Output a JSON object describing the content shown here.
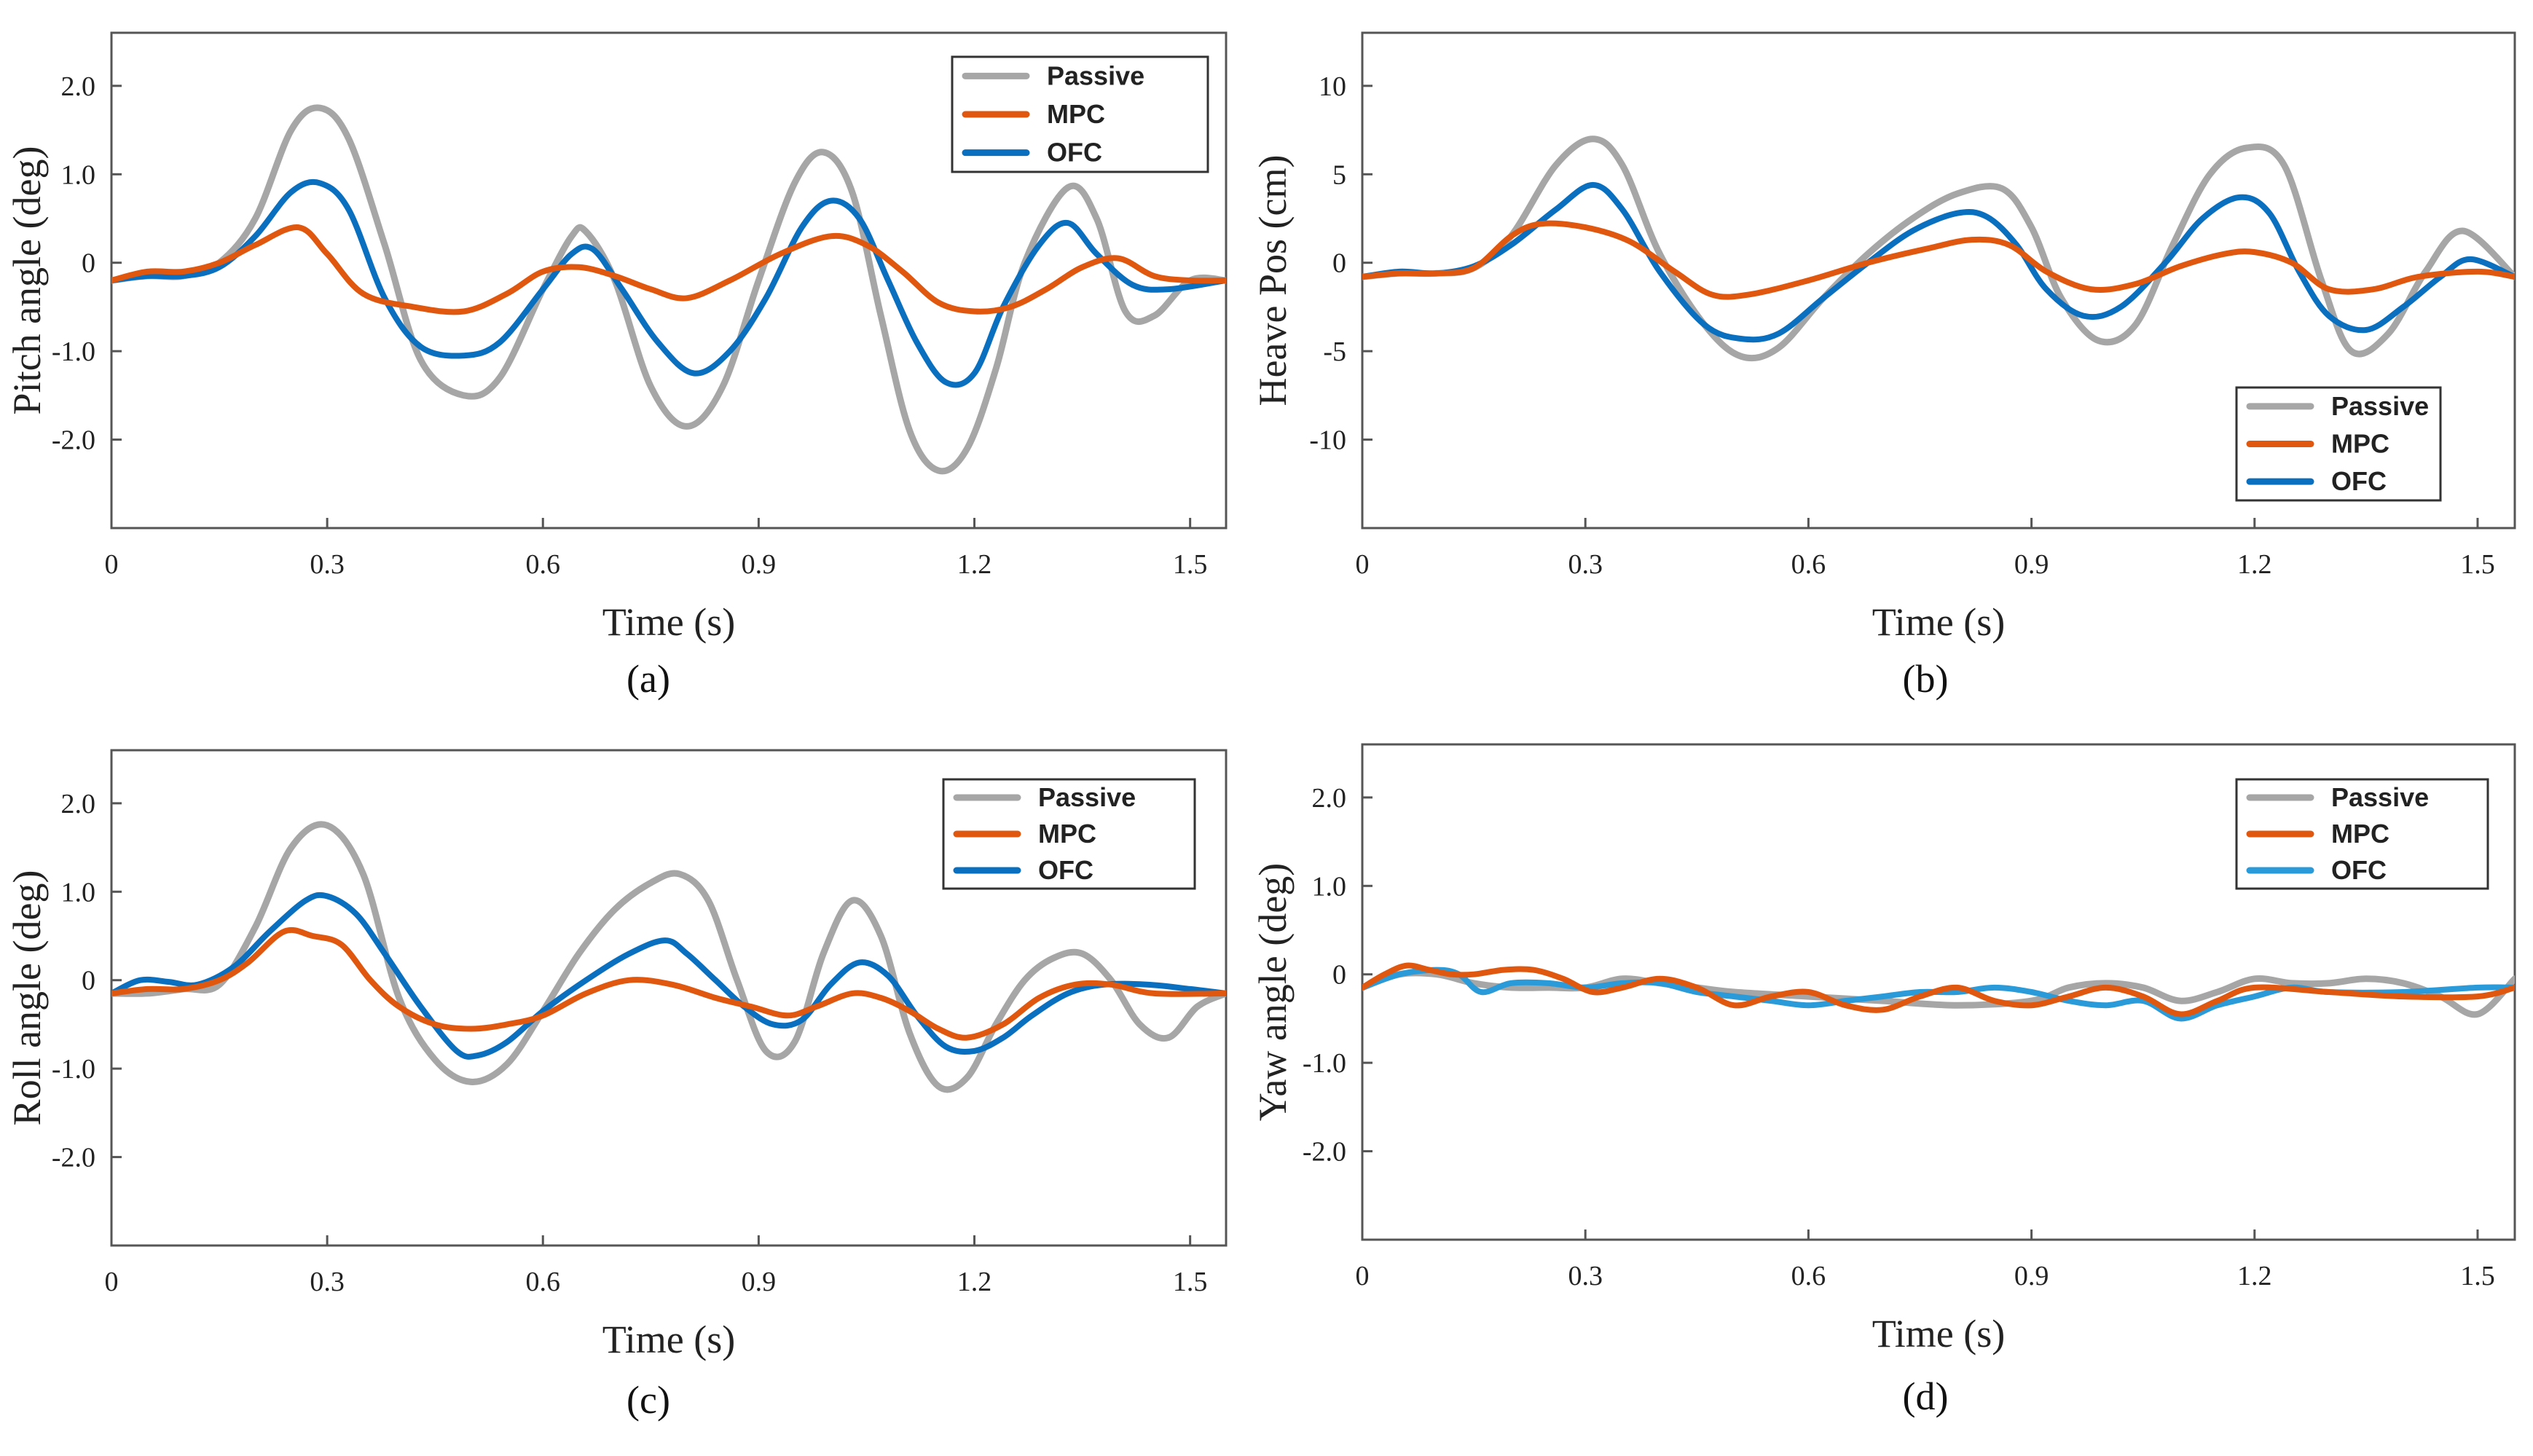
{
  "colors": {
    "Passive": "#a6a6a6",
    "MPC": "#e0580f",
    "OFC": "#0a6fbe",
    "OFC_light": "#2a9ad8"
  },
  "chart_data": [
    {
      "id": "a",
      "panel_label": "(a)",
      "type": "line",
      "xlabel": "Time (s)",
      "ylabel": "Pitch angle (deg)",
      "xlim": [
        0,
        1.55
      ],
      "ylim": [
        -3,
        2.6
      ],
      "xticks": [
        0,
        0.3,
        0.6,
        0.9,
        1.2,
        1.5
      ],
      "xtick_labels": [
        "0",
        "0.3",
        "0.6",
        "0.9",
        "1.2",
        "1.5"
      ],
      "yticks": [
        2,
        1,
        0,
        -1,
        -2
      ],
      "ytick_labels": [
        "2.0",
        "1.0",
        "0",
        "-1.0",
        "-2.0"
      ],
      "legend": [
        "Passive",
        "MPC",
        "OFC"
      ],
      "legend_position": "top-right",
      "series": [
        {
          "name": "Passive",
          "x": [
            0,
            0.05,
            0.1,
            0.15,
            0.2,
            0.25,
            0.29,
            0.33,
            0.38,
            0.43,
            0.49,
            0.54,
            0.6,
            0.64,
            0.66,
            0.7,
            0.75,
            0.8,
            0.85,
            0.9,
            0.95,
            0.99,
            1.03,
            1.07,
            1.11,
            1.15,
            1.19,
            1.23,
            1.27,
            1.33,
            1.37,
            1.41,
            1.45,
            1.5,
            1.55
          ],
          "y": [
            -0.2,
            -0.15,
            -0.15,
            0,
            0.5,
            1.5,
            1.75,
            1.4,
            0.2,
            -1.1,
            -1.5,
            -1.3,
            -0.3,
            0.3,
            0.35,
            -0.2,
            -1.4,
            -1.85,
            -1.4,
            -0.2,
            0.9,
            1.25,
            0.8,
            -0.6,
            -1.9,
            -2.35,
            -2.1,
            -1.2,
            0,
            0.85,
            0.5,
            -0.55,
            -0.6,
            -0.2,
            -0.2
          ]
        },
        {
          "name": "MPC",
          "x": [
            0,
            0.05,
            0.1,
            0.15,
            0.2,
            0.26,
            0.3,
            0.35,
            0.42,
            0.49,
            0.55,
            0.6,
            0.65,
            0.7,
            0.75,
            0.8,
            0.86,
            0.93,
            1.0,
            1.05,
            1.1,
            1.15,
            1.2,
            1.25,
            1.3,
            1.35,
            1.4,
            1.45,
            1.5,
            1.55
          ],
          "y": [
            -0.2,
            -0.1,
            -0.1,
            0,
            0.2,
            0.4,
            0.1,
            -0.35,
            -0.5,
            -0.55,
            -0.35,
            -0.1,
            -0.05,
            -0.15,
            -0.3,
            -0.4,
            -0.2,
            0.1,
            0.3,
            0.2,
            -0.1,
            -0.45,
            -0.55,
            -0.5,
            -0.3,
            -0.05,
            0.05,
            -0.15,
            -0.2,
            -0.2
          ]
        },
        {
          "name": "OFC",
          "x": [
            0,
            0.05,
            0.1,
            0.15,
            0.2,
            0.25,
            0.29,
            0.33,
            0.38,
            0.43,
            0.49,
            0.54,
            0.6,
            0.64,
            0.67,
            0.71,
            0.76,
            0.81,
            0.86,
            0.91,
            0.96,
            1.0,
            1.04,
            1.08,
            1.12,
            1.16,
            1.2,
            1.24,
            1.29,
            1.33,
            1.37,
            1.42,
            1.47,
            1.55
          ],
          "y": [
            -0.2,
            -0.15,
            -0.15,
            -0.05,
            0.3,
            0.8,
            0.9,
            0.6,
            -0.4,
            -0.95,
            -1.05,
            -0.9,
            -0.3,
            0.1,
            0.15,
            -0.3,
            -0.9,
            -1.25,
            -1.0,
            -0.4,
            0.4,
            0.7,
            0.5,
            -0.2,
            -0.9,
            -1.35,
            -1.25,
            -0.5,
            0.2,
            0.45,
            0.1,
            -0.25,
            -0.3,
            -0.2
          ]
        }
      ]
    },
    {
      "id": "b",
      "panel_label": "(b)",
      "type": "line",
      "xlabel": "Time (s)",
      "ylabel": "Heave Pos (cm)",
      "xlim": [
        0,
        1.55
      ],
      "ylim": [
        -15,
        13
      ],
      "xticks": [
        0,
        0.3,
        0.6,
        0.9,
        1.2,
        1.5
      ],
      "xtick_labels": [
        "0",
        "0.3",
        "0.6",
        "0.9",
        "1.2",
        "1.5"
      ],
      "yticks": [
        10,
        5,
        0,
        -5,
        -10
      ],
      "ytick_labels": [
        "10",
        "5",
        "0",
        "-5",
        "-10"
      ],
      "legend": [
        "Passive",
        "MPC",
        "OFC"
      ],
      "legend_position": "bottom-right",
      "series": [
        {
          "name": "Passive",
          "x": [
            0,
            0.05,
            0.1,
            0.15,
            0.2,
            0.26,
            0.31,
            0.35,
            0.4,
            0.46,
            0.51,
            0.56,
            0.62,
            0.68,
            0.74,
            0.8,
            0.86,
            0.9,
            0.94,
            0.99,
            1.04,
            1.09,
            1.14,
            1.19,
            1.24,
            1.29,
            1.33,
            1.38,
            1.43,
            1.48,
            1.55
          ],
          "y": [
            -0.8,
            -0.6,
            -0.6,
            -0.3,
            1.5,
            5.5,
            7.0,
            5.5,
            0.5,
            -3.5,
            -5.3,
            -4.8,
            -2.0,
            0.5,
            2.5,
            3.9,
            4.2,
            2.0,
            -2.0,
            -4.4,
            -3.5,
            1.0,
            5.0,
            6.5,
            5.5,
            -1.0,
            -5.0,
            -4.0,
            -0.5,
            1.8,
            -0.8
          ]
        },
        {
          "name": "MPC",
          "x": [
            0,
            0.05,
            0.1,
            0.15,
            0.2,
            0.24,
            0.3,
            0.36,
            0.42,
            0.47,
            0.52,
            0.6,
            0.68,
            0.76,
            0.82,
            0.87,
            0.92,
            0.98,
            1.04,
            1.1,
            1.16,
            1.2,
            1.25,
            1.3,
            1.36,
            1.42,
            1.5,
            1.55
          ],
          "y": [
            -0.8,
            -0.6,
            -0.6,
            -0.3,
            1.5,
            2.2,
            2.0,
            1.2,
            -0.5,
            -1.8,
            -1.8,
            -1.0,
            0.0,
            0.8,
            1.3,
            1.0,
            -0.5,
            -1.5,
            -1.2,
            -0.2,
            0.5,
            0.6,
            0.0,
            -1.5,
            -1.5,
            -0.8,
            -0.5,
            -0.8
          ]
        },
        {
          "name": "OFC",
          "x": [
            0,
            0.05,
            0.1,
            0.15,
            0.2,
            0.26,
            0.31,
            0.35,
            0.4,
            0.46,
            0.51,
            0.56,
            0.62,
            0.68,
            0.74,
            0.8,
            0.84,
            0.88,
            0.92,
            0.97,
            1.02,
            1.08,
            1.13,
            1.18,
            1.22,
            1.26,
            1.3,
            1.35,
            1.4,
            1.45,
            1.49,
            1.55
          ],
          "y": [
            -0.8,
            -0.5,
            -0.6,
            -0.2,
            1.0,
            3.0,
            4.4,
            3.0,
            -0.5,
            -3.5,
            -4.3,
            -4.0,
            -2.0,
            0.0,
            1.8,
            2.8,
            2.6,
            1.0,
            -1.5,
            -3.0,
            -2.5,
            0.0,
            2.5,
            3.7,
            2.8,
            -0.5,
            -3.0,
            -3.8,
            -2.5,
            -0.8,
            0.2,
            -0.8
          ]
        }
      ]
    },
    {
      "id": "c",
      "panel_label": "(c)",
      "type": "line",
      "xlabel": "Time (s)",
      "ylabel": "Roll angle (deg)",
      "xlim": [
        0,
        1.55
      ],
      "ylim": [
        -3,
        2.6
      ],
      "xticks": [
        0,
        0.3,
        0.6,
        0.9,
        1.2,
        1.5
      ],
      "xtick_labels": [
        "0",
        "0.3",
        "0.6",
        "0.9",
        "1.2",
        "1.5"
      ],
      "yticks": [
        2,
        1,
        0,
        -1,
        -2
      ],
      "ytick_labels": [
        "2.0",
        "1.0",
        "0",
        "-1.0",
        "-2.0"
      ],
      "legend": [
        "Passive",
        "MPC",
        "OFC"
      ],
      "legend_position": "top-right",
      "series": [
        {
          "name": "Passive",
          "x": [
            0,
            0.05,
            0.1,
            0.15,
            0.2,
            0.25,
            0.3,
            0.35,
            0.4,
            0.45,
            0.5,
            0.55,
            0.6,
            0.65,
            0.7,
            0.75,
            0.79,
            0.83,
            0.87,
            0.91,
            0.95,
            0.99,
            1.03,
            1.07,
            1.11,
            1.15,
            1.19,
            1.23,
            1.27,
            1.31,
            1.35,
            1.39,
            1.43,
            1.47,
            1.51,
            1.55
          ],
          "y": [
            -0.15,
            -0.15,
            -0.1,
            -0.05,
            0.6,
            1.5,
            1.75,
            1.2,
            -0.2,
            -0.9,
            -1.15,
            -0.95,
            -0.35,
            0.3,
            0.8,
            1.1,
            1.2,
            0.9,
            0.0,
            -0.8,
            -0.7,
            0.3,
            0.9,
            0.5,
            -0.6,
            -1.2,
            -1.1,
            -0.5,
            0.0,
            0.25,
            0.3,
            0.0,
            -0.5,
            -0.65,
            -0.3,
            -0.15
          ]
        },
        {
          "name": "MPC",
          "x": [
            0,
            0.05,
            0.1,
            0.15,
            0.19,
            0.24,
            0.28,
            0.32,
            0.36,
            0.4,
            0.45,
            0.5,
            0.55,
            0.6,
            0.66,
            0.72,
            0.78,
            0.84,
            0.89,
            0.94,
            0.98,
            1.03,
            1.07,
            1.11,
            1.15,
            1.19,
            1.24,
            1.29,
            1.34,
            1.39,
            1.45,
            1.55
          ],
          "y": [
            -0.15,
            -0.1,
            -0.1,
            0.0,
            0.2,
            0.55,
            0.5,
            0.4,
            0.0,
            -0.3,
            -0.5,
            -0.55,
            -0.5,
            -0.4,
            -0.15,
            0.0,
            -0.05,
            -0.2,
            -0.3,
            -0.4,
            -0.3,
            -0.15,
            -0.2,
            -0.35,
            -0.55,
            -0.65,
            -0.5,
            -0.2,
            -0.05,
            -0.05,
            -0.15,
            -0.15
          ]
        },
        {
          "name": "OFC",
          "x": [
            0,
            0.04,
            0.08,
            0.12,
            0.17,
            0.22,
            0.27,
            0.3,
            0.34,
            0.38,
            0.43,
            0.48,
            0.51,
            0.55,
            0.6,
            0.66,
            0.72,
            0.77,
            0.8,
            0.84,
            0.88,
            0.92,
            0.96,
            1.0,
            1.04,
            1.08,
            1.12,
            1.16,
            1.2,
            1.24,
            1.28,
            1.33,
            1.38,
            1.44,
            1.5,
            1.55
          ],
          "y": [
            -0.15,
            0.0,
            -0.02,
            -0.05,
            0.15,
            0.55,
            0.9,
            0.95,
            0.75,
            0.3,
            -0.3,
            -0.8,
            -0.85,
            -0.7,
            -0.35,
            0.0,
            0.3,
            0.45,
            0.3,
            0.0,
            -0.3,
            -0.5,
            -0.45,
            -0.05,
            0.2,
            0.05,
            -0.4,
            -0.75,
            -0.8,
            -0.65,
            -0.4,
            -0.15,
            -0.05,
            -0.05,
            -0.1,
            -0.15
          ]
        }
      ]
    },
    {
      "id": "d",
      "panel_label": "(d)",
      "type": "line",
      "xlabel": "Time (s)",
      "ylabel": "Yaw angle (deg)",
      "xlim": [
        0,
        1.55
      ],
      "ylim": [
        -3,
        2.6
      ],
      "xticks": [
        0,
        0.3,
        0.6,
        0.9,
        1.2,
        1.5
      ],
      "xtick_labels": [
        "0",
        "0.3",
        "0.6",
        "0.9",
        "1.2",
        "1.5"
      ],
      "yticks": [
        2,
        1,
        0,
        -1,
        -2
      ],
      "ytick_labels": [
        "2.0",
        "1.0",
        "0",
        "-1.0",
        "-2.0"
      ],
      "legend": [
        "Passive",
        "MPC",
        "OFC"
      ],
      "legend_position": "top-right",
      "series": [
        {
          "name": "Passive",
          "x": [
            0,
            0.05,
            0.1,
            0.15,
            0.2,
            0.25,
            0.3,
            0.35,
            0.4,
            0.45,
            0.5,
            0.6,
            0.7,
            0.8,
            0.9,
            0.95,
            1.0,
            1.05,
            1.1,
            1.15,
            1.2,
            1.25,
            1.3,
            1.35,
            1.4,
            1.45,
            1.5,
            1.55
          ],
          "y": [
            -0.15,
            0.0,
            0.0,
            -0.1,
            -0.15,
            -0.15,
            -0.15,
            -0.05,
            -0.1,
            -0.15,
            -0.2,
            -0.25,
            -0.3,
            -0.35,
            -0.3,
            -0.15,
            -0.1,
            -0.15,
            -0.3,
            -0.2,
            -0.05,
            -0.1,
            -0.1,
            -0.05,
            -0.1,
            -0.25,
            -0.45,
            -0.05
          ]
        },
        {
          "name": "MPC",
          "x": [
            0,
            0.03,
            0.06,
            0.09,
            0.12,
            0.15,
            0.19,
            0.23,
            0.27,
            0.31,
            0.35,
            0.4,
            0.45,
            0.5,
            0.55,
            0.6,
            0.65,
            0.7,
            0.75,
            0.8,
            0.85,
            0.9,
            0.95,
            1.0,
            1.05,
            1.1,
            1.15,
            1.2,
            1.3,
            1.4,
            1.5,
            1.55
          ],
          "y": [
            -0.15,
            0.0,
            0.1,
            0.05,
            0.0,
            0.0,
            0.05,
            0.05,
            -0.05,
            -0.2,
            -0.15,
            -0.05,
            -0.15,
            -0.35,
            -0.25,
            -0.2,
            -0.35,
            -0.4,
            -0.25,
            -0.15,
            -0.3,
            -0.35,
            -0.25,
            -0.15,
            -0.25,
            -0.45,
            -0.3,
            -0.15,
            -0.2,
            -0.25,
            -0.25,
            -0.15
          ]
        },
        {
          "name": "OFC",
          "x": [
            0,
            0.05,
            0.1,
            0.13,
            0.16,
            0.2,
            0.25,
            0.3,
            0.35,
            0.4,
            0.45,
            0.5,
            0.55,
            0.6,
            0.65,
            0.7,
            0.75,
            0.8,
            0.85,
            0.9,
            0.95,
            1.0,
            1.05,
            1.1,
            1.15,
            1.2,
            1.25,
            1.3,
            1.4,
            1.5,
            1.55
          ],
          "y": [
            -0.15,
            0.0,
            0.05,
            0.0,
            -0.2,
            -0.1,
            -0.1,
            -0.15,
            -0.1,
            -0.1,
            -0.2,
            -0.25,
            -0.3,
            -0.35,
            -0.3,
            -0.25,
            -0.2,
            -0.2,
            -0.15,
            -0.2,
            -0.3,
            -0.35,
            -0.3,
            -0.5,
            -0.35,
            -0.25,
            -0.15,
            -0.2,
            -0.2,
            -0.15,
            -0.15
          ]
        }
      ]
    }
  ]
}
